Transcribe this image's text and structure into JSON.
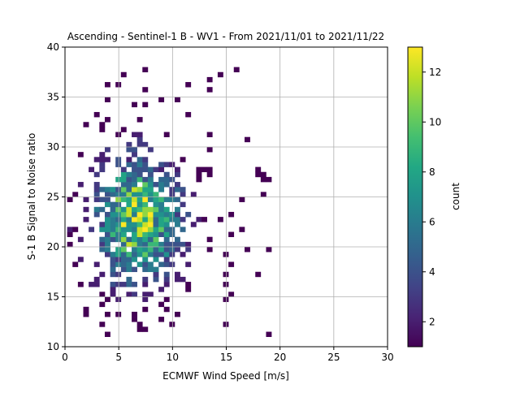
{
  "chart_data": {
    "type": "heatmap",
    "title": "Ascending - Sentinel-1 B - WV1 - From 2021/11/01 to 2021/11/22",
    "xlabel": "ECMWF Wind Speed [m/s]",
    "ylabel": "S-1 B Signal to Noise ratio",
    "xlim": [
      0,
      30
    ],
    "ylim": [
      10,
      40
    ],
    "x_ticks": [
      "0",
      "5",
      "10",
      "15",
      "20",
      "25",
      "30"
    ],
    "y_ticks": [
      "10",
      "15",
      "20",
      "25",
      "30",
      "35",
      "40"
    ],
    "grid": true,
    "colormap": "viridis",
    "colorbar": {
      "label": "count",
      "range": [
        1,
        13
      ],
      "ticks": [
        "2",
        "4",
        "6",
        "8",
        "10",
        "12"
      ]
    },
    "bin_size": {
      "x": 0.5,
      "y": 0.5
    },
    "density_model": {
      "center_x": 6.5,
      "center_y": 22.5,
      "spread_x": 2.8,
      "spread_y": 4.2,
      "peak_count": 13,
      "x_range": [
        0.2,
        19
      ],
      "y_range": [
        11,
        38
      ]
    }
  }
}
